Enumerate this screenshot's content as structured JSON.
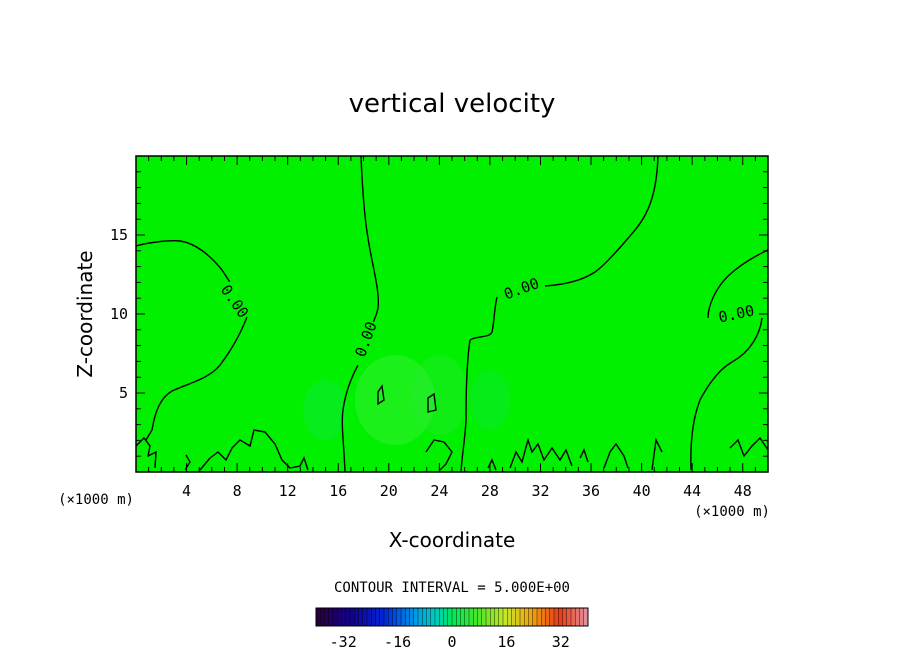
{
  "chart_data": {
    "type": "heatmap",
    "title": "vertical velocity",
    "xlabel": "X-coordinate",
    "ylabel": "Z-coordinate",
    "x_unit": "(×1000 m)",
    "y_unit": "(×1000 m)",
    "xlim": [
      0,
      50
    ],
    "ylim": [
      0,
      20
    ],
    "x_ticks": [
      4,
      8,
      12,
      16,
      20,
      24,
      28,
      32,
      36,
      40,
      44,
      48
    ],
    "y_ticks": [
      5,
      10,
      15
    ],
    "field_color": "#00f000",
    "contour_labels": [
      {
        "text": "0.00",
        "x": 7.8,
        "z": 10.8,
        "angle": 55
      },
      {
        "text": "0.00",
        "x": 18.2,
        "z": 8.4,
        "angle": -70
      },
      {
        "text": "0.00",
        "x": 30.5,
        "z": 11.6,
        "angle": -20
      },
      {
        "text": "0.00",
        "x": 47.5,
        "z": 10.0,
        "angle": -12
      }
    ],
    "contour_interval": "CONTOUR INTERVAL = 5.000E+00",
    "colorbar": {
      "range": [
        -40,
        40
      ],
      "ticks": [
        "-32",
        "-16",
        "0",
        "16",
        "32"
      ],
      "tick_values": [
        -32,
        -16,
        0,
        16,
        32
      ]
    }
  }
}
